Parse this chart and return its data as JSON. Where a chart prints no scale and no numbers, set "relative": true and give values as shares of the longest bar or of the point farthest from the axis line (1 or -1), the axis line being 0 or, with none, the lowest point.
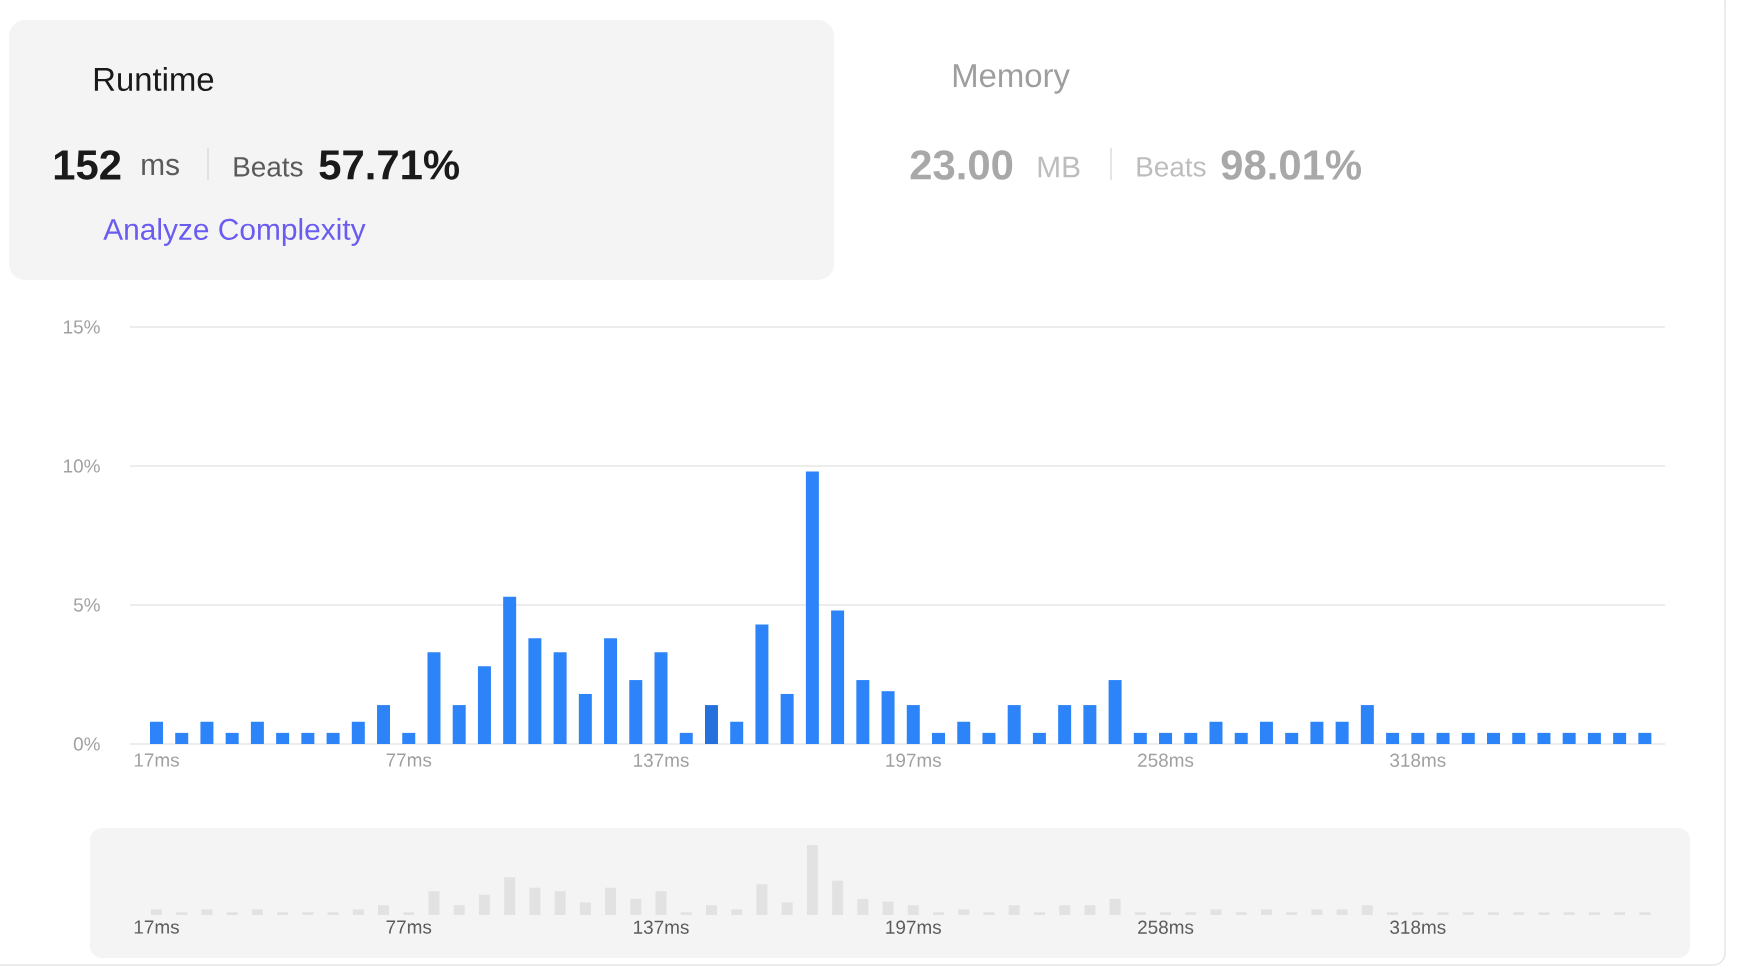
{
  "chart_data": [
    {
      "type": "bar",
      "title": "Runtime",
      "annotations": [
        "152",
        "ms",
        "Beats",
        "57.71%",
        "Analyze Complexity",
        "Memory",
        "23.00",
        "MB",
        "Beats",
        "98.01%"
      ],
      "categories": [
        "17ms",
        null,
        null,
        null,
        null,
        null,
        null,
        null,
        null,
        null,
        "77ms",
        null,
        null,
        null,
        null,
        null,
        null,
        null,
        null,
        null,
        "137ms",
        null,
        null,
        null,
        null,
        null,
        null,
        null,
        null,
        null,
        "197ms",
        null,
        null,
        null,
        null,
        null,
        null,
        null,
        null,
        null,
        "258ms",
        null,
        null,
        null,
        null,
        null,
        null,
        null,
        null,
        null,
        "318ms",
        null,
        null,
        null,
        null,
        null,
        null,
        null,
        null,
        null
      ],
      "values": [
        0.8,
        0.4,
        0.8,
        0.4,
        0.8,
        0.4,
        0.4,
        0.4,
        0.8,
        1.4,
        0.4,
        3.3,
        1.4,
        2.8,
        5.3,
        3.8,
        3.3,
        1.8,
        3.8,
        2.3,
        3.3,
        0.4,
        1.4,
        0.8,
        4.3,
        1.8,
        9.8,
        4.8,
        2.3,
        1.9,
        1.4,
        0.4,
        0.8,
        0.4,
        1.4,
        0.4,
        1.4,
        1.4,
        2.3,
        0.4,
        0.4,
        0.4,
        0.8,
        0.4,
        0.8,
        0.4,
        0.8,
        0.8,
        1.4,
        0.4,
        0.4,
        0.4,
        0.4,
        0.4,
        0.4,
        0.4,
        0.4,
        0.4,
        0.4,
        0.4
      ],
      "colors": [
        "#2d84f9",
        "#2d84f9",
        "#2d84f9",
        "#2d84f9",
        "#2d84f9",
        "#2d84f9",
        "#2d84f9",
        "#2d84f9",
        "#2d84f9",
        "#2d84f9",
        "#2d84f9",
        "#2d84f9",
        "#2d84f9",
        "#2d84f9",
        "#2d84f9",
        "#2d84f9",
        "#2d84f9",
        "#2d84f9",
        "#2d84f9",
        "#2d84f9",
        "#2d84f9",
        "#2d84f9",
        "#2571dc",
        "#2d84f9",
        "#2d84f9",
        "#2d84f9",
        "#2d84f9",
        "#2d84f9",
        "#2d84f9",
        "#2d84f9",
        "#2d84f9",
        "#2d84f9",
        "#2d84f9",
        "#2d84f9",
        "#2d84f9",
        "#2d84f9",
        "#2d84f9",
        "#2d84f9",
        "#2d84f9",
        "#2d84f9",
        "#2d84f9",
        "#2d84f9",
        "#2d84f9",
        "#2d84f9",
        "#2d84f9",
        "#2d84f9",
        "#2d84f9",
        "#2d84f9",
        "#2d84f9",
        "#2d84f9",
        "#2d84f9",
        "#2d84f9",
        "#2d84f9",
        "#2d84f9",
        "#2d84f9",
        "#2d84f9",
        "#2d84f9",
        "#2d84f9",
        "#2d84f9",
        "#2d84f9"
      ],
      "ylim": [
        0,
        15
      ],
      "yticks": [
        {
          "value": 0,
          "label": "0%"
        },
        {
          "value": 5,
          "label": "5%"
        },
        {
          "value": 10,
          "label": "10%"
        },
        {
          "value": 15,
          "label": "15%"
        }
      ],
      "grid": "y"
    },
    {
      "type": "bar",
      "relative": true,
      "color": "#e2e2e2",
      "categories": [
        "17ms",
        null,
        null,
        null,
        null,
        null,
        null,
        null,
        null,
        null,
        "77ms",
        null,
        null,
        null,
        null,
        null,
        null,
        null,
        null,
        null,
        "137ms",
        null,
        null,
        null,
        null,
        null,
        null,
        null,
        null,
        null,
        "197ms",
        null,
        null,
        null,
        null,
        null,
        null,
        null,
        null,
        null,
        "258ms",
        null,
        null,
        null,
        null,
        null,
        null,
        null,
        null,
        null,
        "318ms",
        null,
        null,
        null,
        null,
        null,
        null,
        null,
        null,
        null
      ],
      "values": [
        0.08,
        0.04,
        0.08,
        0.04,
        0.08,
        0.04,
        0.04,
        0.04,
        0.08,
        0.14,
        0.04,
        0.34,
        0.14,
        0.29,
        0.54,
        0.39,
        0.34,
        0.18,
        0.39,
        0.23,
        0.34,
        0.04,
        0.14,
        0.08,
        0.44,
        0.18,
        1,
        0.49,
        0.23,
        0.19,
        0.14,
        0.04,
        0.08,
        0.04,
        0.14,
        0.04,
        0.14,
        0.14,
        0.23,
        0.04,
        0.04,
        0.04,
        0.08,
        0.04,
        0.08,
        0.04,
        0.08,
        0.08,
        0.14,
        0.04,
        0.04,
        0.04,
        0.04,
        0.04,
        0.04,
        0.04,
        0.04,
        0.04,
        0.04,
        0.04
      ]
    }
  ]
}
